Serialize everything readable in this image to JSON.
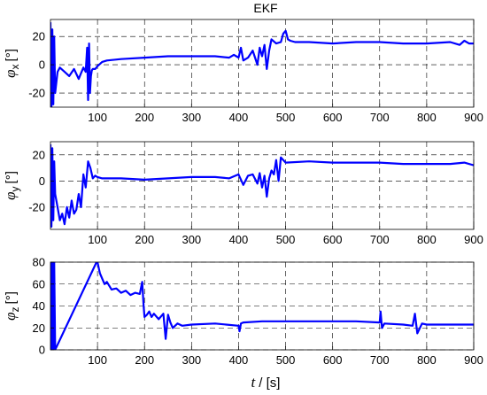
{
  "title": "EKF",
  "chart_data": [
    {
      "type": "line",
      "ylabel": {
        "symbol": "φ",
        "sub": "x",
        "unit": "[°]"
      },
      "xlim": [
        0,
        900
      ],
      "ylim": [
        -30,
        32
      ],
      "yticks": [
        -20,
        0,
        20
      ],
      "xticks": [
        100,
        200,
        300,
        400,
        500,
        600,
        700,
        800,
        900
      ],
      "grid": true,
      "color": "#0000ff",
      "series": [
        {
          "x": [
            0,
            2,
            4,
            6,
            8,
            10,
            15,
            20,
            30,
            40,
            50,
            60,
            65,
            70,
            75,
            78,
            80,
            82,
            84,
            86,
            88,
            90,
            95,
            100,
            110,
            120,
            150,
            200,
            250,
            300,
            350,
            380,
            390,
            395,
            400,
            405,
            410,
            420,
            430,
            440,
            445,
            450,
            455,
            460,
            465,
            470,
            480,
            490,
            495,
            500,
            505,
            510,
            520,
            550,
            600,
            650,
            700,
            750,
            800,
            850,
            870,
            880,
            890,
            900
          ],
          "y": [
            30,
            -30,
            25,
            -28,
            20,
            -20,
            -5,
            -2,
            -5,
            -8,
            -3,
            -10,
            -6,
            -2,
            -5,
            12,
            -25,
            15,
            -20,
            -8,
            -4,
            -3,
            -3,
            -1,
            2,
            3,
            4,
            5,
            6,
            6,
            6,
            5,
            7,
            6,
            5,
            12,
            3,
            5,
            10,
            0,
            12,
            6,
            14,
            -3,
            10,
            18,
            15,
            16,
            22,
            24,
            18,
            17,
            16,
            16,
            15,
            16,
            16,
            15,
            15,
            16,
            14,
            17,
            15,
            15
          ]
        }
      ]
    },
    {
      "type": "line",
      "ylabel": {
        "symbol": "φ",
        "sub": "y",
        "unit": "[°]"
      },
      "xlim": [
        0,
        900
      ],
      "ylim": [
        -37,
        30
      ],
      "yticks": [
        -20,
        0,
        20
      ],
      "xticks": [
        100,
        200,
        300,
        400,
        500,
        600,
        700,
        800,
        900
      ],
      "grid": true,
      "color": "#0000ff",
      "series": [
        {
          "x": [
            0,
            2,
            4,
            6,
            8,
            10,
            15,
            20,
            25,
            30,
            35,
            40,
            45,
            50,
            55,
            60,
            65,
            70,
            75,
            80,
            85,
            90,
            95,
            100,
            110,
            150,
            200,
            250,
            300,
            350,
            380,
            400,
            410,
            420,
            430,
            440,
            445,
            450,
            455,
            460,
            465,
            470,
            475,
            480,
            485,
            490,
            500,
            550,
            600,
            650,
            700,
            750,
            800,
            850,
            880,
            900
          ],
          "y": [
            28,
            -35,
            25,
            -30,
            15,
            -10,
            -20,
            -30,
            -25,
            -33,
            -20,
            -28,
            -15,
            -25,
            -22,
            -10,
            -20,
            5,
            -5,
            15,
            10,
            2,
            4,
            3,
            2,
            2,
            1,
            2,
            3,
            3,
            2,
            5,
            -3,
            4,
            5,
            -2,
            6,
            -5,
            4,
            -12,
            2,
            8,
            5,
            16,
            0,
            18,
            14,
            15,
            14,
            14,
            14,
            13,
            13,
            13,
            14,
            12
          ]
        }
      ]
    },
    {
      "type": "line",
      "ylabel": {
        "symbol": "φ",
        "sub": "z",
        "unit": "[°]"
      },
      "xlim": [
        0,
        900
      ],
      "ylim": [
        0,
        80
      ],
      "yticks": [
        0,
        20,
        40,
        60,
        80
      ],
      "xticks": [
        100,
        200,
        300,
        400,
        500,
        600,
        700,
        800,
        900
      ],
      "xlabel": {
        "symbol": "t",
        "unit": "/ [s]"
      },
      "grid": true,
      "color": "#0000ff",
      "series": [
        {
          "x": [
            0,
            2,
            4,
            6,
            8,
            10,
            98,
            100,
            105,
            110,
            115,
            120,
            130,
            140,
            150,
            160,
            170,
            180,
            190,
            195,
            198,
            200,
            205,
            210,
            215,
            220,
            230,
            240,
            245,
            250,
            255,
            260,
            270,
            280,
            300,
            350,
            400,
            402,
            405,
            410,
            450,
            500,
            550,
            600,
            650,
            700,
            702,
            705,
            710,
            750,
            770,
            775,
            780,
            790,
            800,
            850,
            900
          ],
          "y": [
            80,
            0,
            80,
            0,
            80,
            0,
            80,
            80,
            70,
            65,
            60,
            62,
            55,
            56,
            52,
            54,
            50,
            52,
            51,
            62,
            40,
            30,
            32,
            35,
            30,
            33,
            28,
            33,
            10,
            32,
            25,
            20,
            24,
            22,
            23,
            24,
            22,
            17,
            24,
            25,
            26,
            26,
            26,
            26,
            26,
            25,
            35,
            20,
            24,
            23,
            22,
            33,
            15,
            24,
            23,
            23,
            23
          ]
        }
      ]
    }
  ]
}
